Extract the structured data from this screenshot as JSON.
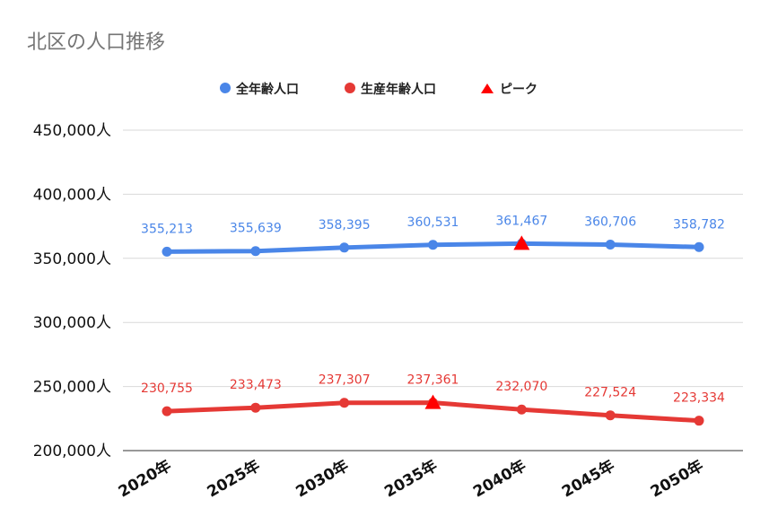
{
  "chart_data": {
    "type": "line",
    "title": "北区の人口推移",
    "categories": [
      "2020年",
      "2025年",
      "2030年",
      "2035年",
      "2040年",
      "2045年",
      "2050年"
    ],
    "y_tick_labels": [
      "450,000人",
      "400,000人",
      "350,000人",
      "300,000人",
      "250,000人",
      "200,000人"
    ],
    "y_ticks": [
      450000,
      400000,
      350000,
      300000,
      250000,
      200000
    ],
    "ylim": [
      200000,
      450000
    ],
    "grid": true,
    "legend_position": "top-center",
    "series": [
      {
        "name": "全年齢人口",
        "color": "#4a86e8",
        "values": [
          355213,
          355639,
          358395,
          360531,
          361467,
          360706,
          358782
        ],
        "value_labels": [
          "355,213",
          "355,639",
          "358,395",
          "360,531",
          "361,467",
          "360,706",
          "358,782"
        ]
      },
      {
        "name": "生産年齢人口",
        "color": "#e53935",
        "values": [
          230755,
          233473,
          237307,
          237361,
          232070,
          227524,
          223334
        ],
        "value_labels": [
          "230,755",
          "233,473",
          "237,307",
          "237,361",
          "232,070",
          "227,524",
          "223,334"
        ]
      }
    ],
    "peak_marker": {
      "name": "ピーク",
      "color": "#ff0000",
      "points": [
        {
          "series": "全年齢人口",
          "category": "2040年",
          "value": 361467
        },
        {
          "series": "生産年齢人口",
          "category": "2035年",
          "value": 237361
        }
      ]
    }
  }
}
